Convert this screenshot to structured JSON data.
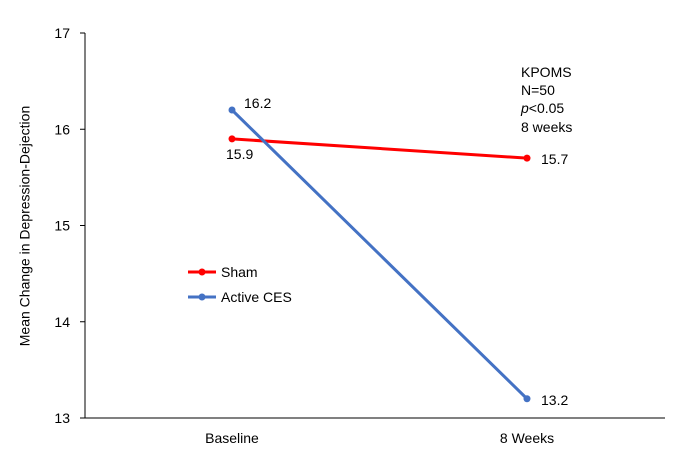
{
  "chart_data": {
    "type": "line",
    "title": "",
    "xlabel": "",
    "ylabel": "Mean Change in Depression-Dejection",
    "categories": [
      "Baseline",
      "8 Weeks"
    ],
    "ylim": [
      13,
      17
    ],
    "yticks": [
      "13",
      "14",
      "15",
      "16",
      "17"
    ],
    "grid": false,
    "legend_position": "center-left",
    "series": [
      {
        "name": "Sham",
        "values": [
          15.9,
          15.7
        ],
        "labels": [
          "15.9",
          "15.7"
        ],
        "color": "#ff0000"
      },
      {
        "name": "Active CES",
        "values": [
          16.2,
          13.2
        ],
        "labels": [
          "16.2",
          "13.2"
        ],
        "color": "#4472c4"
      }
    ],
    "annotation": {
      "line1": "KPOMS",
      "line2": "N=50",
      "line3_italic": "p",
      "line3_rest": "<0.05",
      "line4": "8 weeks"
    }
  }
}
